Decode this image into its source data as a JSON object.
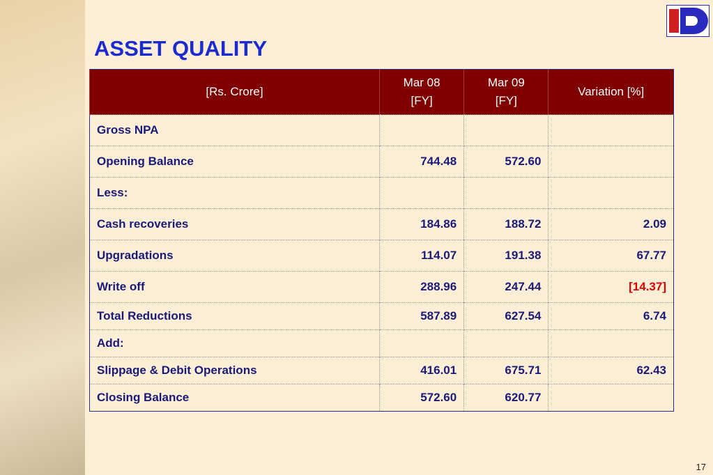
{
  "header": {
    "title": "ASSET QUALITY"
  },
  "table": {
    "columns": [
      [
        "[Rs. Crore]"
      ],
      [
        "Mar 08",
        "[FY]"
      ],
      [
        "Mar 09",
        "[FY]"
      ],
      [
        "Variation [%]"
      ]
    ],
    "rows": [
      [
        "Gross NPA"
      ],
      [
        "Opening Balance",
        "744.48",
        "572.60"
      ],
      [
        "Less:"
      ],
      [
        "Cash recoveries",
        "184.86",
        "188.72",
        "2.09"
      ],
      [
        "Upgradations",
        "114.07",
        "191.38",
        "67.77"
      ],
      [
        "Write off",
        "288.96",
        "247.44",
        "[14.37]"
      ],
      [
        "Total Reductions",
        "587.89",
        "627.54",
        "6.74"
      ],
      [
        "Add:"
      ],
      [
        "Slippage & Debit Operations",
        "416.01",
        "675.71",
        "62.43"
      ],
      [
        "Closing Balance",
        "572.60",
        "620.77"
      ]
    ]
  },
  "footer": {
    "page_number": "17"
  }
}
